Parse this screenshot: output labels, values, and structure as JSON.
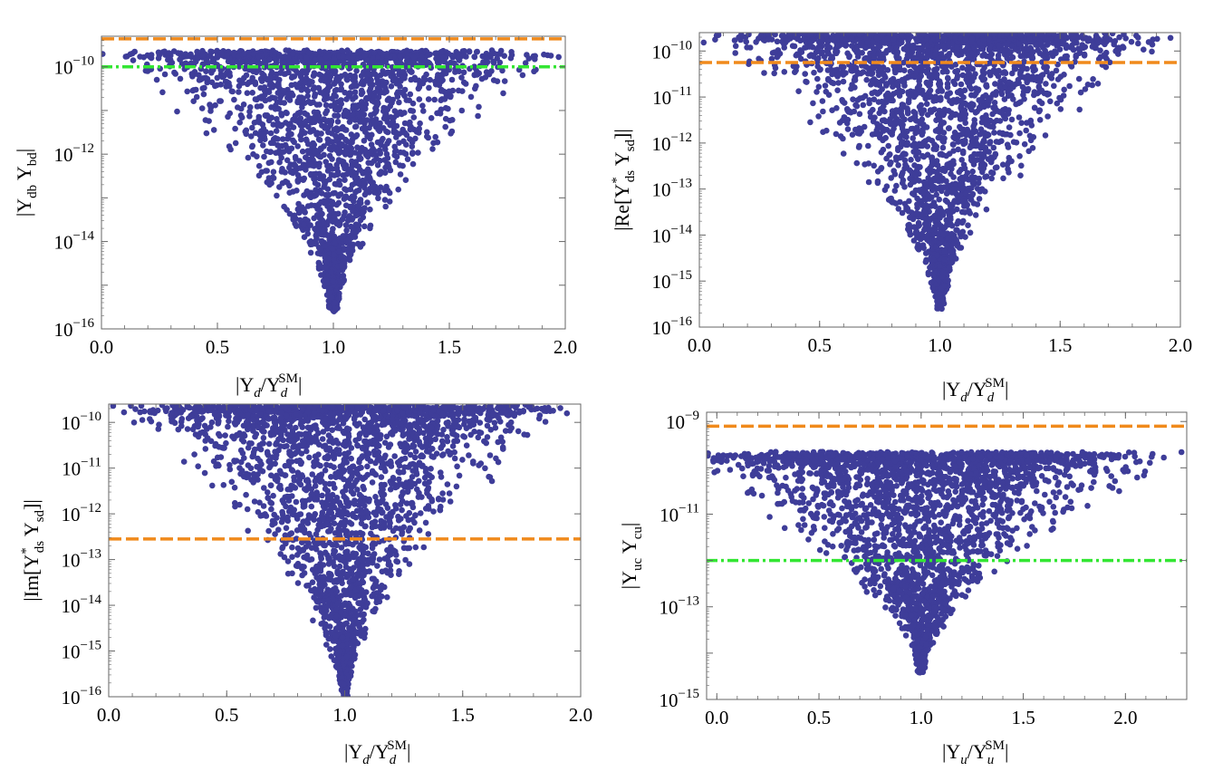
{
  "colors": {
    "points": "#3e3d99",
    "orange": "#f08a1c",
    "green": "#33e633",
    "frame": "#666666"
  },
  "chart_data": [
    {
      "type": "scatter",
      "x_range": [
        0,
        2.0
      ],
      "y_log_range": [
        -16,
        -9.3
      ],
      "xticks": [
        0.0,
        0.5,
        1.0,
        1.5,
        2.0
      ],
      "xtick_labels": [
        "0.0",
        "0.5",
        "1.0",
        "1.5",
        "2.0"
      ],
      "yticks_exp": [
        -10,
        -12,
        -14,
        -16
      ],
      "ytick_labels": [
        "10",
        "10",
        "10",
        "10"
      ],
      "ytick_exps": [
        "−10",
        "−12",
        "−14",
        "−16"
      ],
      "xlabel": {
        "pre": "|Y",
        "sub1": "d",
        "mid": "/Y",
        "sub2": "d",
        "sup": "SM",
        "post": "|"
      },
      "ylabel": {
        "pre": "|Y",
        "sub1": "db",
        "mid": " Y",
        "sub2": "bd",
        "post": "|"
      },
      "lines": [
        {
          "name": "orange dashed bound",
          "y_exp": -9.36,
          "color": "orange",
          "style": "dashed"
        },
        {
          "name": "green dash-dot bound",
          "y_exp": -10.0,
          "color": "green",
          "style": "dashdot"
        }
      ],
      "scatter": {
        "center": 1.0,
        "half_width": 1.0,
        "top_exp": -9.62,
        "bottom_exp": -15.5,
        "n": 2400,
        "seed": 11
      }
    },
    {
      "type": "scatter",
      "x_range": [
        0,
        2.0
      ],
      "y_log_range": [
        -16,
        -9.6
      ],
      "xticks": [
        0.0,
        0.5,
        1.0,
        1.5,
        2.0
      ],
      "xtick_labels": [
        "0.0",
        "0.5",
        "1.0",
        "1.5",
        "2.0"
      ],
      "yticks_exp": [
        -10,
        -11,
        -12,
        -13,
        -14,
        -15,
        -16
      ],
      "ytick_labels": [
        "10",
        "10",
        "10",
        "10",
        "10",
        "10",
        "10"
      ],
      "ytick_exps": [
        "−10",
        "−11",
        "−12",
        "−13",
        "−14",
        "−15",
        "−16"
      ],
      "xlabel": {
        "pre": "|Y",
        "sub1": "d",
        "mid": "/Y",
        "sub2": "d",
        "sup": "SM",
        "post": "|"
      },
      "ylabel": {
        "pre": "|Re[Y",
        "sup1": "*",
        "sub1": "ds",
        "mid": " Y",
        "sub2": "sd",
        "post": "]|"
      },
      "lines": [
        {
          "name": "orange dashed bound",
          "y_exp": -10.25,
          "color": "orange",
          "style": "dashed"
        }
      ],
      "scatter": {
        "center": 1.0,
        "half_width": 1.0,
        "top_exp": -9.6,
        "bottom_exp": -15.5,
        "n": 2600,
        "seed": 23
      }
    },
    {
      "type": "scatter",
      "x_range": [
        0,
        2.0
      ],
      "y_log_range": [
        -16,
        -9.6
      ],
      "xticks": [
        0.0,
        0.5,
        1.0,
        1.5,
        2.0
      ],
      "xtick_labels": [
        "0.0",
        "0.5",
        "1.0",
        "1.5",
        "2.0"
      ],
      "yticks_exp": [
        -10,
        -11,
        -12,
        -13,
        -14,
        -15,
        -16
      ],
      "ytick_labels": [
        "10",
        "10",
        "10",
        "10",
        "10",
        "10",
        "10"
      ],
      "ytick_exps": [
        "−10",
        "−11",
        "−12",
        "−13",
        "−14",
        "−15",
        "−16"
      ],
      "xlabel": {
        "pre": "|Y",
        "sub1": "d",
        "mid": "/Y",
        "sub2": "d",
        "sup": "SM",
        "post": "|"
      },
      "ylabel": {
        "pre": "|Im[Y",
        "sup1": "*",
        "sub1": "ds",
        "mid": " Y",
        "sub2": "sd",
        "post": "]|"
      },
      "lines": [
        {
          "name": "orange dashed bound",
          "y_exp": -12.55,
          "color": "orange",
          "style": "dashed"
        }
      ],
      "scatter": {
        "center": 1.0,
        "half_width": 1.0,
        "top_exp": -9.6,
        "bottom_exp": -15.9,
        "n": 2600,
        "seed": 37
      }
    },
    {
      "type": "scatter",
      "x_range": [
        -0.05,
        2.3
      ],
      "y_log_range": [
        -15,
        -8.8
      ],
      "xticks": [
        0.0,
        0.5,
        1.0,
        1.5,
        2.0
      ],
      "xtick_labels": [
        "0.0",
        "0.5",
        "1.0",
        "1.5",
        "2.0"
      ],
      "yticks_exp": [
        -9,
        -11,
        -13,
        -15
      ],
      "ytick_labels": [
        "10",
        "10",
        "10",
        "10"
      ],
      "ytick_exps": [
        "−9",
        "−11",
        "−13",
        "−15"
      ],
      "xlabel": {
        "pre": "|Y",
        "sub1": "u",
        "mid": "/Y",
        "sub2": "u",
        "sup": "SM",
        "post": "|"
      },
      "ylabel": {
        "pre": "|Y",
        "sub1": "uc",
        "mid": " Y",
        "sub2": "cu",
        "post": "|"
      },
      "lines": [
        {
          "name": "orange dashed bound",
          "y_exp": -9.1,
          "color": "orange",
          "style": "dashed"
        },
        {
          "name": "green dash-dot bound",
          "y_exp": -12.0,
          "color": "green",
          "style": "dashdot"
        }
      ],
      "scatter": {
        "center": 1.0,
        "half_width": 1.3,
        "top_exp": -9.65,
        "bottom_exp": -14.3,
        "n": 2600,
        "seed": 53
      }
    }
  ]
}
